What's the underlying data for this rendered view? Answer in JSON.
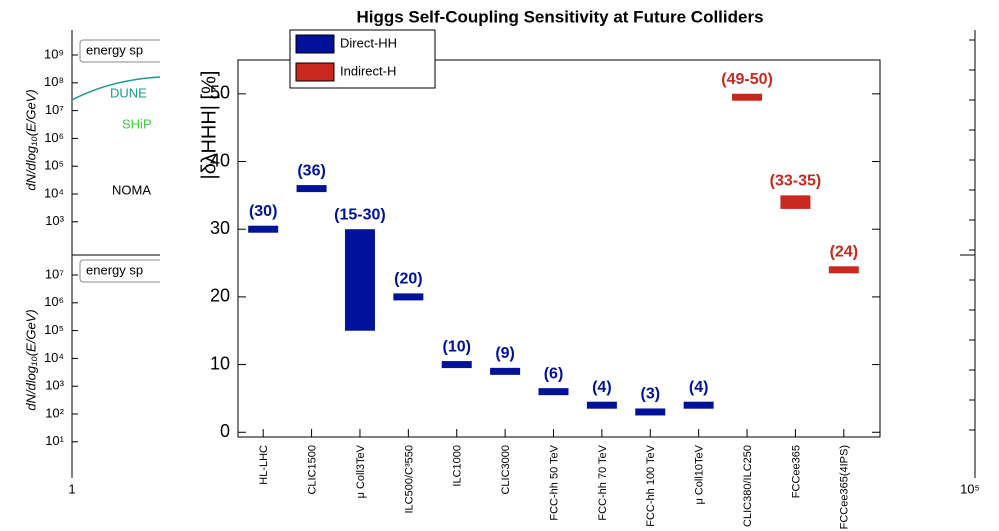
{
  "background_figure": {
    "top_panel": {
      "y_label": "dN/dlog₁₀(E/GeV)",
      "yticks": [
        "10⁹",
        "10⁸",
        "10⁷",
        "10⁶",
        "10⁵",
        "10⁴",
        "10³"
      ],
      "legend_title": "energy sp",
      "labels": [
        "DUNE",
        "SHiP",
        "NOMA"
      ]
    },
    "bottom_panel": {
      "y_label": "dN/dlog₁₀(E/GeV)",
      "yticks": [
        "10⁷",
        "10⁶",
        "10⁵",
        "10⁴",
        "10³",
        "10²",
        "10¹"
      ],
      "legend_title": "energy sp"
    },
    "xticks": [
      "1",
      "10⁵"
    ]
  },
  "chart_data": {
    "type": "range_bar",
    "title": "Higgs Self-Coupling Sensitivity at Future Colliders",
    "y_label": "|δλHHH| [%]",
    "categories": [
      "HL-LHC",
      "CLIC1500",
      "μ Coll3TeV",
      "ILC500/C³550",
      "ILC1000",
      "CLIC3000",
      "FCC-hh 50 TeV",
      "FCC-hh 70 TeV",
      "FCC-hh 100 TeV",
      "μ Coll10TeV",
      "CLIC380/ILC250",
      "FCCee365",
      "FCCee365(4IPS)"
    ],
    "series": [
      {
        "name": "Direct-HH",
        "color": "#00119a",
        "low": [
          30,
          36,
          15,
          20,
          10,
          9,
          6,
          4,
          3,
          4,
          null,
          null,
          null
        ],
        "high": [
          30,
          36,
          30,
          20,
          10,
          9,
          6,
          4,
          3,
          4,
          null,
          null,
          null
        ],
        "value_labels": [
          "(30)",
          "(36)",
          "(15-30)",
          "(20)",
          "(10)",
          "(9)",
          "(6)",
          "(4)",
          "(3)",
          "(4)",
          null,
          null,
          null
        ]
      },
      {
        "name": "Indirect-H",
        "color": "#c8281e",
        "low": [
          null,
          null,
          null,
          null,
          null,
          null,
          null,
          null,
          null,
          null,
          49,
          33,
          24
        ],
        "high": [
          null,
          null,
          null,
          null,
          null,
          null,
          null,
          null,
          null,
          null,
          50,
          35,
          24
        ],
        "value_labels": [
          null,
          null,
          null,
          null,
          null,
          null,
          null,
          null,
          null,
          null,
          "(49-50)",
          "(33-35)",
          "(24)"
        ]
      }
    ],
    "ylim": [
      -0.7,
      55
    ],
    "yticks": [
      0,
      10,
      20,
      30,
      40,
      50
    ]
  }
}
